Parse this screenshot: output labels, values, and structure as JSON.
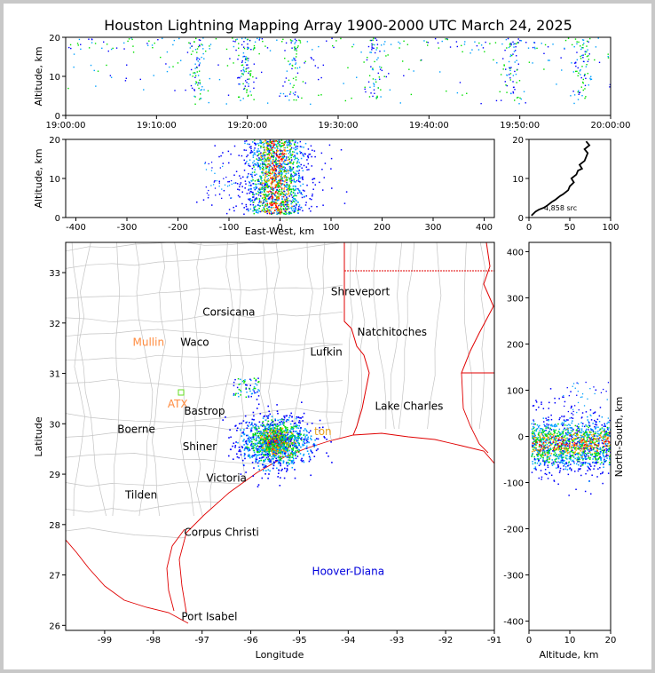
{
  "title": "Houston Lightning Mapping Array 1900-2000 UTC March 24, 2025",
  "colors": {
    "points": [
      "#0000ff",
      "#00a0ff",
      "#00e000",
      "#ffa000",
      "#ff0000"
    ],
    "state_border": "#e00000",
    "county_border": "#bdbdbd",
    "coast": "#e00000",
    "frame": "#000000"
  },
  "chart_data": [
    {
      "type": "scatter",
      "name": "altitude-vs-time",
      "ylabel": "Altitude, km",
      "xlim": [
        "19:00:00",
        "20:00:00"
      ],
      "ylim": [
        0,
        20
      ],
      "x_ticks": [
        "19:00:00",
        "19:10:00",
        "19:20:00",
        "19:30:00",
        "19:40:00",
        "19:50:00",
        "20:00:00"
      ],
      "y_ticks": [
        0,
        10,
        20
      ],
      "activity_peaks_minutes": [
        14.5,
        19.8,
        25,
        34,
        49,
        57
      ]
    },
    {
      "type": "scatter",
      "name": "altitude-vs-east-west",
      "xlabel": "East-West, km",
      "ylabel": "Altitude, km",
      "xlim": [
        -420,
        420
      ],
      "ylim": [
        0,
        20
      ],
      "x_ticks": [
        -400,
        -300,
        -200,
        -100,
        0,
        100,
        200,
        300,
        400
      ],
      "y_ticks": [
        0,
        10,
        20
      ],
      "center_km": -10,
      "spread_km": 45
    },
    {
      "type": "line",
      "name": "altitude-histogram",
      "xlim": [
        0,
        100
      ],
      "ylim": [
        0,
        20
      ],
      "x_ticks": [
        0,
        50,
        100
      ],
      "y_ticks": [
        0,
        10,
        20
      ],
      "annotation": "4,858 src",
      "x": [
        3,
        8,
        12,
        18,
        22,
        28,
        32,
        38,
        42,
        48,
        50,
        55,
        52,
        58,
        60,
        65,
        62,
        68,
        70,
        72,
        68,
        74,
        70
      ],
      "y": [
        0.5,
        1.5,
        2,
        2.5,
        3,
        4,
        4.5,
        5.5,
        6,
        7,
        8,
        9,
        10,
        11,
        12,
        12.5,
        13.5,
        14.5,
        15.5,
        16.5,
        17.5,
        18.5,
        19.5
      ]
    },
    {
      "type": "scatter",
      "name": "plan-view-map",
      "xlabel": "Longitude",
      "ylabel": "Latitude",
      "xlim": [
        -99.8,
        -91
      ],
      "ylim": [
        25.9,
        33.6
      ],
      "x_ticks": [
        -99,
        -98,
        -97,
        -96,
        -95,
        -94,
        -93,
        -92,
        -91
      ],
      "y_ticks": [
        26,
        27,
        28,
        29,
        30,
        31,
        32,
        33
      ],
      "storm_center": [
        -95.5,
        29.65
      ],
      "cities": [
        {
          "name": "Shreveport",
          "lon": -93.75,
          "lat": 32.55,
          "color": "#000000"
        },
        {
          "name": "Corsicana",
          "lon": -96.45,
          "lat": 32.15,
          "color": "#000000"
        },
        {
          "name": "Natchitoches",
          "lon": -93.1,
          "lat": 31.75,
          "color": "#000000"
        },
        {
          "name": "Mullin",
          "lon": -98.1,
          "lat": 31.55,
          "color": "#ff8c40"
        },
        {
          "name": "Waco",
          "lon": -97.15,
          "lat": 31.55,
          "color": "#000000"
        },
        {
          "name": "Lufkin",
          "lon": -94.45,
          "lat": 31.35,
          "color": "#000000"
        },
        {
          "name": "ATX",
          "lon": -97.5,
          "lat": 30.32,
          "color": "#ff8c40"
        },
        {
          "name": "Bastrop",
          "lon": -96.95,
          "lat": 30.18,
          "color": "#000000"
        },
        {
          "name": "Lake Charles",
          "lon": -92.75,
          "lat": 30.28,
          "color": "#000000"
        },
        {
          "name": "Boerne",
          "lon": -98.35,
          "lat": 29.82,
          "color": "#000000"
        },
        {
          "name": "Shiner",
          "lon": -97.05,
          "lat": 29.48,
          "color": "#000000"
        },
        {
          "name": "Victoria",
          "lon": -96.5,
          "lat": 28.85,
          "color": "#000000"
        },
        {
          "name": "Tilden",
          "lon": -98.25,
          "lat": 28.52,
          "color": "#000000"
        },
        {
          "name": "Corpus Christi",
          "lon": -96.6,
          "lat": 27.78,
          "color": "#000000"
        },
        {
          "name": "Hoover-Diana",
          "lon": -94.0,
          "lat": 27.0,
          "color": "#0000dd"
        },
        {
          "name": "Port Isabel",
          "lon": -96.85,
          "lat": 26.1,
          "color": "#000000"
        }
      ]
    },
    {
      "type": "scatter",
      "name": "north-south-vs-altitude",
      "xlabel": "Altitude, km",
      "ylabel": "North-South, km",
      "xlim": [
        0,
        20
      ],
      "ylim": [
        -420,
        420
      ],
      "x_ticks": [
        0,
        10,
        20
      ],
      "y_ticks": [
        -400,
        -300,
        -200,
        -100,
        0,
        100,
        200,
        300,
        400
      ],
      "center_km": -15,
      "spread_km": 35
    }
  ]
}
